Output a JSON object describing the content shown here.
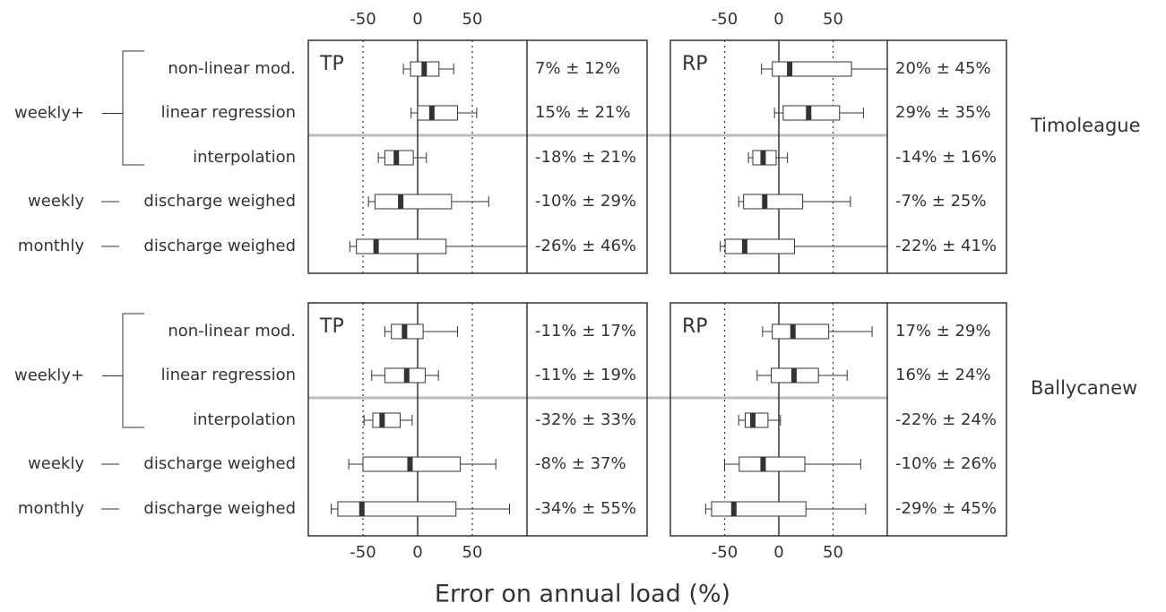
{
  "chart_data": {
    "type": "box",
    "xlabel": "Error on annual load (%)",
    "xlim": [
      -100,
      100
    ],
    "xticks": [
      -50,
      0,
      50
    ],
    "groups": [
      {
        "label": "weekly+",
        "categories": [
          "non-linear mod.",
          "linear regression",
          "interpolation"
        ]
      },
      {
        "label": "weekly",
        "categories": [
          "discharge weighed"
        ]
      },
      {
        "label": "monthly",
        "categories": [
          "discharge weighed"
        ]
      }
    ],
    "sites": [
      {
        "name": "Timoleague",
        "panels": [
          {
            "title": "TP",
            "boxes": [
              {
                "whislo": -13,
                "q1": -6.5,
                "med": 6,
                "q3": 19.5,
                "whishi": 33,
                "label": "7% ± 12%"
              },
              {
                "whislo": -6,
                "q1": 0,
                "med": 13,
                "q3": 36.5,
                "whishi": 54,
                "label": "15% ± 21%"
              },
              {
                "whislo": -36,
                "q1": -30,
                "med": -19.5,
                "q3": -4,
                "whishi": 8,
                "label": "-18% ± 21%"
              },
              {
                "whislo": -45,
                "q1": -39,
                "med": -15.5,
                "q3": 31,
                "whishi": 65,
                "label": "-10% ± 29%"
              },
              {
                "whislo": -62,
                "q1": -56,
                "med": -38,
                "q3": 26,
                "whishi": 100,
                "label": "-26% ± 46%"
              }
            ]
          },
          {
            "title": "RP",
            "boxes": [
              {
                "whislo": -16,
                "q1": -6,
                "med": 10,
                "q3": 67,
                "whishi": 100,
                "label": "20% ± 45%"
              },
              {
                "whislo": -4,
                "q1": 4,
                "med": 27.5,
                "q3": 56,
                "whishi": 78,
                "label": "29% ± 35%"
              },
              {
                "whislo": -28,
                "q1": -24,
                "med": -14.5,
                "q3": -2.5,
                "whishi": 8,
                "label": "-14% ± 16%"
              },
              {
                "whislo": -37,
                "q1": -32.5,
                "med": -13,
                "q3": 22,
                "whishi": 66,
                "label": "-7% ± 25%"
              },
              {
                "whislo": -54,
                "q1": -49.5,
                "med": -31.5,
                "q3": 14.5,
                "whishi": 100,
                "label": "-22% ± 41%"
              }
            ]
          }
        ]
      },
      {
        "name": "Ballycanew",
        "panels": [
          {
            "title": "TP",
            "boxes": [
              {
                "whislo": -30,
                "q1": -24,
                "med": -12,
                "q3": 5,
                "whishi": 36.5,
                "label": "-11% ± 17%"
              },
              {
                "whislo": -42,
                "q1": -30,
                "med": -10,
                "q3": 7,
                "whishi": 19,
                "label": "-11% ± 19%"
              },
              {
                "whislo": -49,
                "q1": -41,
                "med": -32.5,
                "q3": -16,
                "whishi": -5,
                "label": "-32% ± 33%"
              },
              {
                "whislo": -63,
                "q1": -50,
                "med": -7,
                "q3": 39,
                "whishi": 71.5,
                "label": "-8% ± 37%"
              },
              {
                "whislo": -79,
                "q1": -73,
                "med": -51,
                "q3": 35,
                "whishi": 84,
                "label": "-34% ± 55%"
              }
            ]
          },
          {
            "title": "RP",
            "boxes": [
              {
                "whislo": -15,
                "q1": -6,
                "med": 13,
                "q3": 46,
                "whishi": 86,
                "label": "17% ± 29%"
              },
              {
                "whislo": -20,
                "q1": -7,
                "med": 14,
                "q3": 36.5,
                "whishi": 63,
                "label": "16% ± 24%"
              },
              {
                "whislo": -37,
                "q1": -31,
                "med": -24,
                "q3": -10,
                "whishi": 1.5,
                "label": "-22% ± 24%"
              },
              {
                "whislo": -50,
                "q1": -36.5,
                "med": -14.5,
                "q3": 24,
                "whishi": 75.5,
                "label": "-10% ± 26%"
              },
              {
                "whislo": -67.5,
                "q1": -62,
                "med": -41.5,
                "q3": 25,
                "whishi": 80,
                "label": "-29% ± 45%"
              }
            ]
          }
        ]
      }
    ]
  }
}
